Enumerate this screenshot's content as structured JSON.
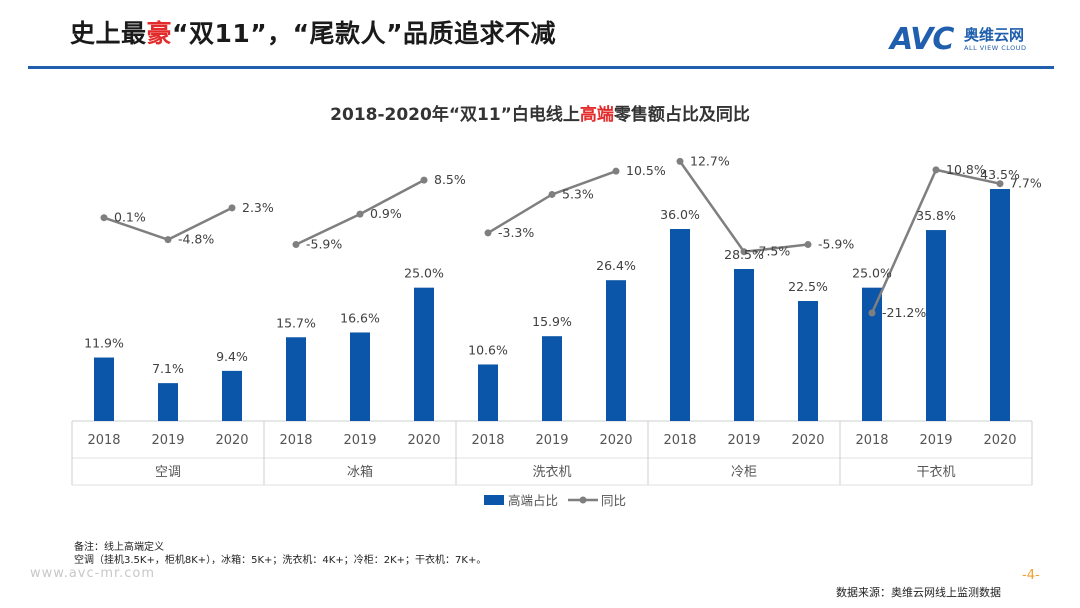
{
  "header": {
    "title_pre": "史上最",
    "title_hl": "豪",
    "title_post": "“双11”，“尾款人”品质追求不减",
    "logo_text": "AVC",
    "logo_cn": "奥维云网",
    "logo_en": "ALL VIEW CLOUD"
  },
  "chart_data": {
    "type": "bar",
    "title_pre": "2018-2020年“双11”白电线上",
    "title_hl": "高端",
    "title_post": "零售额占比及同比",
    "groups": [
      "空调",
      "冰箱",
      "洗衣机",
      "冷柜",
      "干衣机"
    ],
    "years": [
      "2018",
      "2019",
      "2020"
    ],
    "series": [
      {
        "name": "高端占比",
        "type": "bar",
        "color": "#0b56a8",
        "values": [
          11.9,
          7.1,
          9.4,
          15.7,
          16.6,
          25.0,
          10.6,
          15.9,
          26.4,
          36.0,
          28.5,
          22.5,
          25.0,
          35.8,
          43.5
        ],
        "labels": [
          "11.9%",
          "7.1%",
          "9.4%",
          "15.7%",
          "16.6%",
          "25.0%",
          "10.6%",
          "15.9%",
          "26.4%",
          "36.0%",
          "28.5%",
          "22.5%",
          "25.0%",
          "35.8%",
          "43.5%"
        ]
      },
      {
        "name": "同比",
        "type": "line",
        "color": "#7f7f7f",
        "values": [
          0.1,
          -4.8,
          2.3,
          -5.9,
          0.9,
          8.5,
          -3.3,
          5.3,
          10.5,
          12.7,
          -7.5,
          -5.9,
          -21.2,
          10.8,
          7.7
        ],
        "labels": [
          "0.1%",
          "-4.8%",
          "2.3%",
          "-5.9%",
          "0.9%",
          "8.5%",
          "-3.3%",
          "5.3%",
          "10.5%",
          "12.7%",
          "-7.5%",
          "-5.9%",
          "-21.2%",
          "10.8%",
          "7.7%"
        ]
      }
    ],
    "bar_axis": {
      "min": 0,
      "max": 45
    },
    "line_axis": {
      "min": -25,
      "max": 13
    },
    "legend": [
      "高端占比",
      "同比"
    ],
    "legend_position": "bottom"
  },
  "notes": {
    "line1": "备注：线上高端定义",
    "line2": "空调（挂机3.5K+，柜机8K+），冰箱：5K+；洗衣机：4K+；冷柜：2K+；干衣机：7K+。"
  },
  "footer": {
    "site": "www.avc-mr.com",
    "page": "-4-",
    "source": "数据来源：奥维云网线上监测数据"
  }
}
